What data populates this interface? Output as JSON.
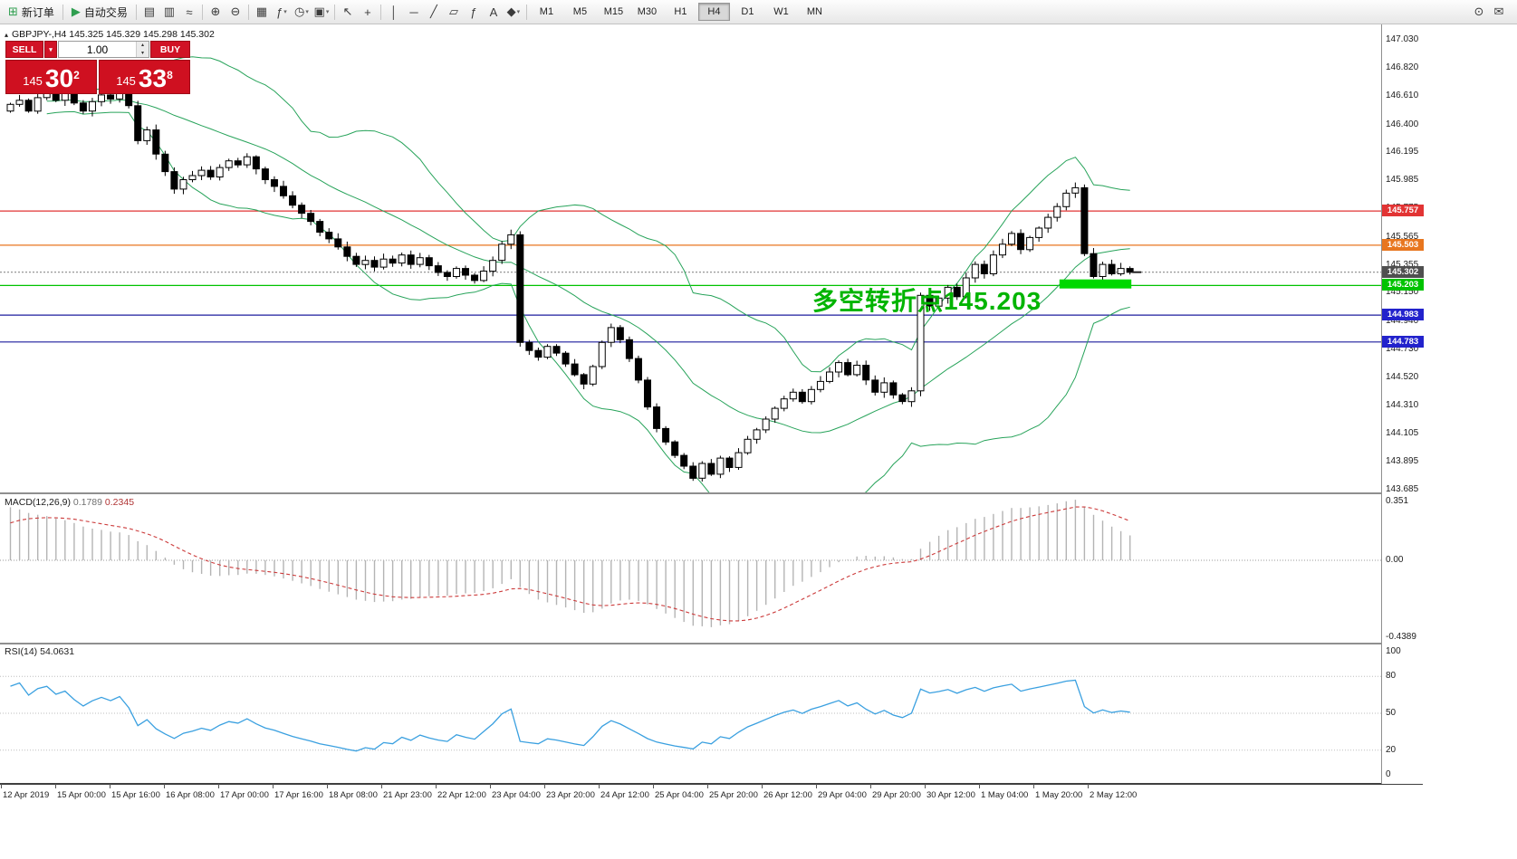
{
  "toolbar": {
    "text_buttons": [
      {
        "name": "new-order-button",
        "icon_name": "new-order-icon",
        "glyph": "⊞",
        "icon_color": "#2e9e4f",
        "label": "新订单"
      },
      {
        "name": "auto-trading-button",
        "icon_name": "auto-trading-icon",
        "glyph": "▶",
        "icon_color": "#2e9e4f",
        "label": "自动交易"
      }
    ],
    "icon_groups": [
      [
        {
          "name": "bar-chart-icon",
          "glyph": "▤"
        },
        {
          "name": "candlestick-chart-icon",
          "glyph": "▥"
        },
        {
          "name": "line-chart-icon",
          "glyph": "≈"
        }
      ],
      [
        {
          "name": "zoom-in-icon",
          "glyph": "⊕"
        },
        {
          "name": "zoom-out-icon",
          "glyph": "⊖"
        }
      ],
      [
        {
          "name": "tile-windows-icon",
          "glyph": "▦"
        },
        {
          "name": "indicators-icon",
          "glyph": "ƒ",
          "dd": true
        },
        {
          "name": "periods-icon",
          "glyph": "◷",
          "dd": true
        },
        {
          "name": "templates-icon",
          "glyph": "▣",
          "dd": true
        }
      ],
      [
        {
          "name": "cursor-icon",
          "glyph": "↖"
        },
        {
          "name": "crosshair-icon",
          "glyph": "+"
        }
      ],
      [
        {
          "name": "vertical-line-icon",
          "glyph": "│"
        },
        {
          "name": "horizontal-line-icon",
          "glyph": "─"
        },
        {
          "name": "trendline-icon",
          "glyph": "╱"
        },
        {
          "name": "channel-icon",
          "glyph": "▱"
        },
        {
          "name": "fibonacci-icon",
          "glyph": "ƒ"
        },
        {
          "name": "text-label-icon",
          "glyph": "A"
        },
        {
          "name": "arrow-tools-icon",
          "glyph": "◆",
          "dd": true
        }
      ]
    ],
    "timeframes": [
      {
        "label": "M1"
      },
      {
        "label": "M5"
      },
      {
        "label": "M15"
      },
      {
        "label": "M30"
      },
      {
        "label": "H1"
      },
      {
        "label": "H4",
        "active": true
      },
      {
        "label": "D1"
      },
      {
        "label": "W1"
      },
      {
        "label": "MN"
      }
    ],
    "right_icons": [
      {
        "name": "search-icon",
        "glyph": "⊙"
      },
      {
        "name": "feedback-icon",
        "glyph": "✉"
      }
    ]
  },
  "glyphs": {
    "up": "▴",
    "down": "▾",
    "collapse": "▴"
  },
  "chart": {
    "symbol_title": "GBPJPY-,H4 145.325 145.329 145.298 145.302",
    "annotation": "多空转折点145.203"
  },
  "trade": {
    "sell_label": "SELL",
    "buy_label": "BUY",
    "volume": "1.00",
    "sell_main": "145",
    "sell_pips": "30",
    "sell_sup": "2",
    "buy_main": "145",
    "buy_pips": "33",
    "buy_sup": "8"
  },
  "macd": {
    "name": "MACD(12,26,9)",
    "value1": "0.1789",
    "value2": "0.2345"
  },
  "rsi": {
    "name": "RSI(14)",
    "value": "54.0631"
  },
  "time_axis": [
    "12 Apr 2019",
    "15 Apr 00:00",
    "15 Apr 16:00",
    "16 Apr 08:00",
    "17 Apr 00:00",
    "17 Apr 16:00",
    "18 Apr 08:00",
    "21 Apr 23:00",
    "22 Apr 12:00",
    "23 Apr 04:00",
    "23 Apr 20:00",
    "24 Apr 12:00",
    "25 Apr 04:00",
    "25 Apr 20:00",
    "26 Apr 12:00",
    "29 Apr 04:00",
    "29 Apr 20:00",
    "30 Apr 12:00",
    "1 May 04:00",
    "1 May 20:00",
    "2 May 12:00"
  ],
  "chart_data": {
    "type": "candlestick",
    "symbol": "GBPJPY",
    "timeframe": "H4",
    "ylim": [
      143.658,
      147.151
    ],
    "first_open": 146.5,
    "closes": [
      146.55,
      146.58,
      146.5,
      146.6,
      146.64,
      146.58,
      146.63,
      146.56,
      146.5,
      146.57,
      146.62,
      146.59,
      146.65,
      146.54,
      146.28,
      146.36,
      146.18,
      146.05,
      145.92,
      145.99,
      146.02,
      146.06,
      146.01,
      146.08,
      146.13,
      146.1,
      146.16,
      146.07,
      145.99,
      145.94,
      145.87,
      145.8,
      145.74,
      145.68,
      145.6,
      145.55,
      145.49,
      145.42,
      145.36,
      145.39,
      145.34,
      145.4,
      145.37,
      145.43,
      145.36,
      145.41,
      145.35,
      145.3,
      145.27,
      145.33,
      145.28,
      145.24,
      145.31,
      145.39,
      145.51,
      145.58,
      144.78,
      144.72,
      144.67,
      144.75,
      144.7,
      144.62,
      144.54,
      144.47,
      144.6,
      144.78,
      144.89,
      144.8,
      144.66,
      144.5,
      144.3,
      144.14,
      144.04,
      143.94,
      143.86,
      143.77,
      143.88,
      143.8,
      143.92,
      143.85,
      143.96,
      144.06,
      144.13,
      144.21,
      144.29,
      144.36,
      144.41,
      144.34,
      144.43,
      144.49,
      144.56,
      144.63,
      144.54,
      144.61,
      144.5,
      144.41,
      144.48,
      144.39,
      144.34,
      144.42,
      145.13,
      145.05,
      145.11,
      145.19,
      145.12,
      145.26,
      145.36,
      145.29,
      145.43,
      145.51,
      145.59,
      145.47,
      145.56,
      145.63,
      145.71,
      145.79,
      145.89,
      145.93,
      145.44,
      145.27,
      145.36,
      145.29,
      145.33,
      145.302
    ],
    "indicators": {
      "bollinger": {
        "period": 20,
        "deviation": 2,
        "color": "#27a35a"
      },
      "macd": {
        "fast": 12,
        "slow": 26,
        "signal": 9,
        "range": [
          -0.4389,
          0.351
        ],
        "scale_labels": [
          {
            "text": "0.351",
            "v": 0.351
          },
          {
            "text": "0.00",
            "v": 0
          },
          {
            "text": "-0.4389",
            "v": -0.4389
          }
        ],
        "histogram_color": "#b4b4b4",
        "signal_color": "#cc3b3b"
      },
      "rsi": {
        "period": 14,
        "range": [
          0,
          100
        ],
        "levels": [
          80,
          50,
          20
        ],
        "scale_labels": [
          100,
          80,
          50,
          20,
          0
        ],
        "line_color": "#3aa0e0"
      }
    },
    "levels": [
      {
        "price": 145.757,
        "color": "#e23434",
        "style": "solid",
        "label": "145.757",
        "tag_bg": "#e23434"
      },
      {
        "price": 145.503,
        "color": "#e8761f",
        "style": "solid",
        "label": "145.503",
        "tag_bg": "#e8761f"
      },
      {
        "price": 145.302,
        "color": "#8a8a8a",
        "style": "dotted",
        "label": "145.302",
        "tag_bg": "#4f4f4f"
      },
      {
        "price": 145.203,
        "color": "#00c300",
        "style": "solid",
        "label": "145.203",
        "tag_bg": "#00c300"
      },
      {
        "price": 144.983,
        "color": "#1d1d9e",
        "style": "solid",
        "label": "144.983",
        "tag_bg": "#2222cc"
      },
      {
        "price": 144.783,
        "color": "#1d1d9e",
        "style": "solid",
        "label": "144.783",
        "tag_bg": "#2222cc"
      }
    ],
    "highlight": {
      "price": 145.215,
      "from_bar": 115.6,
      "to_bar": 123.5,
      "color": "#00d800"
    },
    "price_axis_labels": [
      "147.030",
      "146.820",
      "146.610",
      "146.400",
      "146.195",
      "145.985",
      "145.775",
      "145.565",
      "145.355",
      "145.150",
      "144.940",
      "144.730",
      "144.520",
      "144.310",
      "144.105",
      "143.895",
      "143.685"
    ]
  }
}
